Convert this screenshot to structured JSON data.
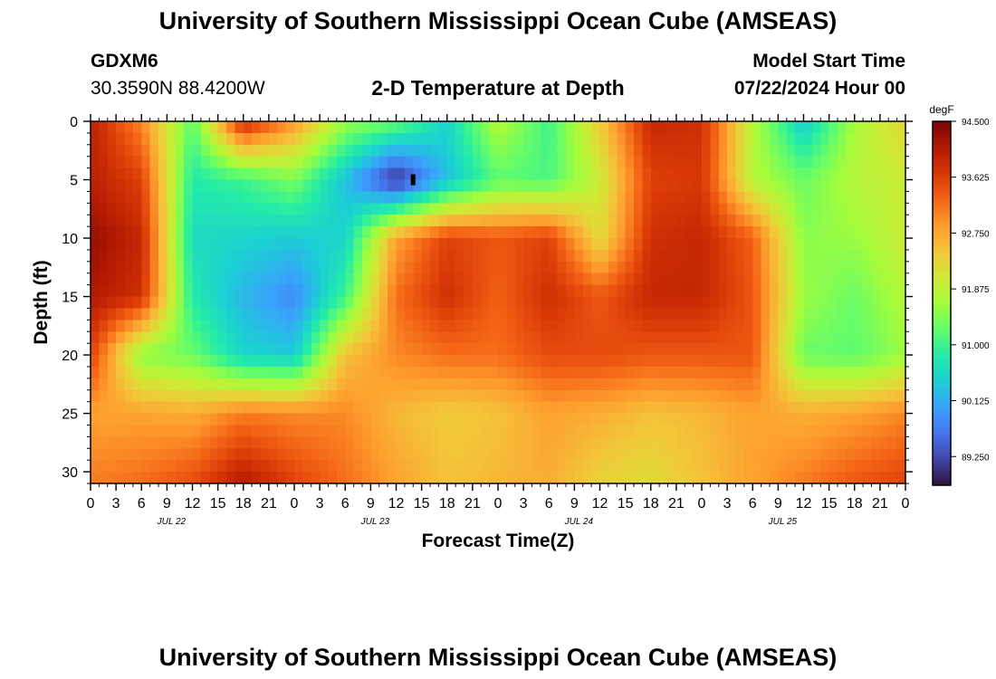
{
  "page": {
    "title_top": "University of Southern Mississippi Ocean Cube (AMSEAS)",
    "title_bottom": "University of Southern Mississippi Ocean Cube (AMSEAS)",
    "station_id": "GDXM6",
    "station_coords": "30.3590N  88.4200W",
    "chart_heading": "2-D Temperature at Depth",
    "model_start_label": "Model Start Time",
    "model_start_value": "07/22/2024 Hour 00"
  },
  "chart_data": {
    "type": "heatmap",
    "title": "2-D Temperature at Depth",
    "xlabel": "Forecast Time(Z)",
    "ylabel": "Depth (ft)",
    "x_tick_labels": [
      "0",
      "3",
      "6",
      "9",
      "12",
      "15",
      "18",
      "21",
      "0",
      "3",
      "6",
      "9",
      "12",
      "15",
      "18",
      "21",
      "0",
      "3",
      "6",
      "9",
      "12",
      "15",
      "18",
      "21",
      "0",
      "3",
      "6",
      "9",
      "12",
      "15",
      "18",
      "21",
      "0"
    ],
    "date_labels": [
      {
        "label": "JUL 22",
        "hour": 9
      },
      {
        "label": "JUL 23",
        "hour": 33
      },
      {
        "label": "JUL 24",
        "hour": 57
      },
      {
        "label": "JUL 25",
        "hour": 81
      }
    ],
    "x_range_hours": [
      0,
      96
    ],
    "y_ticks": [
      0,
      5,
      10,
      15,
      20,
      25,
      30
    ],
    "ylim": [
      0,
      31
    ],
    "y_inverted": true,
    "colorbar": {
      "unit": "degF",
      "min": 88.8,
      "max": 94.5,
      "tick_labels": [
        "94.500",
        "93.625",
        "92.750",
        "91.875",
        "91.000",
        "90.125",
        "89.250"
      ],
      "tick_values": [
        94.5,
        93.625,
        92.75,
        91.875,
        91.0,
        90.125,
        89.25
      ]
    },
    "colormap": [
      "#30123b",
      "#4145ab",
      "#4675ed",
      "#39a2fc",
      "#1bcfd4",
      "#24eca6",
      "#61fc6c",
      "#a4fc3b",
      "#d1e834",
      "#f3c63a",
      "#fe9b2d",
      "#f36315",
      "#d93806",
      "#b11901",
      "#7a0403"
    ],
    "grid": false,
    "legend": "colorbar-right",
    "times": [
      0,
      6,
      12,
      18,
      24,
      30,
      36,
      42,
      48,
      54,
      60,
      66,
      72,
      78,
      84,
      90,
      96
    ],
    "depths": [
      0,
      5,
      10,
      15,
      20,
      25,
      31
    ],
    "values": [
      [
        94.0,
        93.0,
        91.2,
        93.9,
        92.9,
        91.6,
        91.3,
        90.5,
        91.8,
        91.0,
        92.4,
        93.9,
        93.8,
        91.8,
        90.4,
        91.7,
        92.3
      ],
      [
        94.0,
        93.6,
        90.8,
        91.0,
        91.4,
        90.3,
        89.0,
        90.3,
        91.2,
        91.1,
        92.0,
        93.6,
        93.7,
        91.8,
        91.3,
        91.8,
        92.0
      ],
      [
        94.3,
        93.9,
        90.6,
        90.5,
        90.4,
        90.5,
        92.8,
        93.6,
        93.4,
        93.6,
        92.2,
        93.8,
        93.9,
        93.3,
        91.5,
        91.6,
        92.0
      ],
      [
        94.1,
        93.8,
        90.8,
        90.2,
        89.8,
        91.0,
        93.2,
        93.8,
        93.3,
        93.8,
        93.4,
        93.9,
        93.9,
        93.4,
        91.6,
        91.3,
        91.8
      ],
      [
        93.6,
        91.5,
        91.3,
        90.5,
        90.4,
        92.5,
        93.0,
        93.2,
        93.2,
        93.5,
        93.5,
        93.4,
        93.4,
        93.4,
        91.3,
        91.2,
        91.6
      ],
      [
        92.8,
        92.8,
        92.7,
        93.1,
        93.0,
        93.0,
        92.6,
        92.4,
        92.5,
        92.8,
        92.7,
        92.5,
        92.6,
        92.8,
        92.7,
        92.8,
        93.0
      ],
      [
        93.1,
        93.2,
        93.5,
        94.1,
        93.6,
        93.2,
        92.8,
        92.5,
        92.6,
        92.7,
        92.3,
        92.2,
        92.5,
        92.8,
        93.1,
        93.4,
        93.6
      ]
    ],
    "markers": [
      {
        "hour": 38,
        "depth": 5,
        "shape": "rect"
      }
    ]
  }
}
